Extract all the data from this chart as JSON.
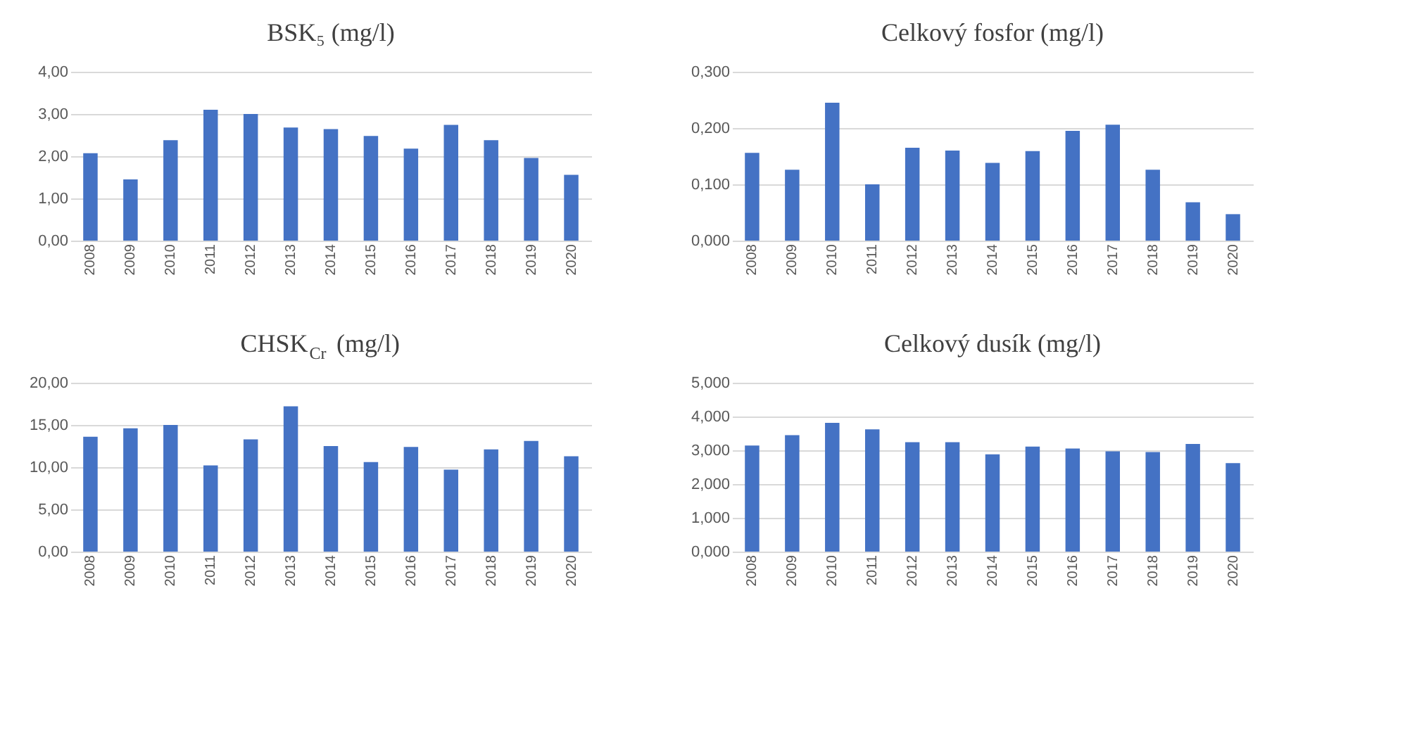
{
  "chart_data": [
    {
      "type": "bar",
      "title": "BSK₅ (mg/l)",
      "categories": [
        "2008",
        "2009",
        "2010",
        "2011",
        "2012",
        "2013",
        "2014",
        "2015",
        "2016",
        "2017",
        "2018",
        "2019",
        "2020"
      ],
      "values": [
        2.07,
        1.45,
        2.38,
        3.1,
        3.0,
        2.68,
        2.64,
        2.48,
        2.18,
        2.74,
        2.38,
        1.96,
        1.56
      ],
      "color": "#4472c4",
      "ylim": [
        0,
        4
      ],
      "yticks": [
        {
          "value": 0,
          "label": "0,00"
        },
        {
          "value": 1,
          "label": "1,00"
        },
        {
          "value": 2,
          "label": "2,00"
        },
        {
          "value": 3,
          "label": "3,00"
        },
        {
          "value": 4,
          "label": "4,00"
        }
      ],
      "grid": "y"
    },
    {
      "type": "bar",
      "title": "Celkový fosfor (mg/l)",
      "categories": [
        "2008",
        "2009",
        "2010",
        "2011",
        "2012",
        "2013",
        "2014",
        "2015",
        "2016",
        "2017",
        "2018",
        "2019",
        "2020"
      ],
      "values": [
        0.156,
        0.126,
        0.245,
        0.1,
        0.165,
        0.16,
        0.138,
        0.159,
        0.195,
        0.206,
        0.126,
        0.068,
        0.047
      ],
      "color": "#4472c4",
      "ylim": [
        0,
        0.3
      ],
      "yticks": [
        {
          "value": 0,
          "label": "0,000"
        },
        {
          "value": 0.1,
          "label": "0,100"
        },
        {
          "value": 0.2,
          "label": "0,200"
        },
        {
          "value": 0.3,
          "label": "0,300"
        }
      ],
      "grid": "y"
    },
    {
      "type": "bar",
      "title": "CHSK$_{Cr}$ (mg/l)",
      "categories": [
        "2008",
        "2009",
        "2010",
        "2011",
        "2012",
        "2013",
        "2014",
        "2015",
        "2016",
        "2017",
        "2018",
        "2019",
        "2020"
      ],
      "values": [
        13.6,
        14.6,
        15.0,
        10.2,
        13.3,
        17.2,
        12.5,
        10.6,
        12.4,
        9.7,
        12.1,
        13.1,
        11.3
      ],
      "color": "#4472c4",
      "ylim": [
        0,
        20
      ],
      "yticks": [
        {
          "value": 0,
          "label": "0,00"
        },
        {
          "value": 5,
          "label": "5,00"
        },
        {
          "value": 10,
          "label": "10,00"
        },
        {
          "value": 15,
          "label": "15,00"
        },
        {
          "value": 20,
          "label": "20,00"
        }
      ],
      "grid": "y"
    },
    {
      "type": "bar",
      "title": "Celkový dusík (mg/l)",
      "categories": [
        "2008",
        "2009",
        "2010",
        "2011",
        "2012",
        "2013",
        "2014",
        "2015",
        "2016",
        "2017",
        "2018",
        "2019",
        "2020"
      ],
      "values": [
        3.14,
        3.45,
        3.81,
        3.62,
        3.24,
        3.24,
        2.88,
        3.11,
        3.05,
        2.97,
        2.95,
        3.19,
        2.62
      ],
      "color": "#4472c4",
      "ylim": [
        0,
        5
      ],
      "yticks": [
        {
          "value": 0,
          "label": "0,000"
        },
        {
          "value": 1,
          "label": "1,000"
        },
        {
          "value": 2,
          "label": "2,000"
        },
        {
          "value": 3,
          "label": "3,000"
        },
        {
          "value": 4,
          "label": "4,000"
        },
        {
          "value": 5,
          "label": "5,000"
        }
      ],
      "grid": "y"
    }
  ]
}
